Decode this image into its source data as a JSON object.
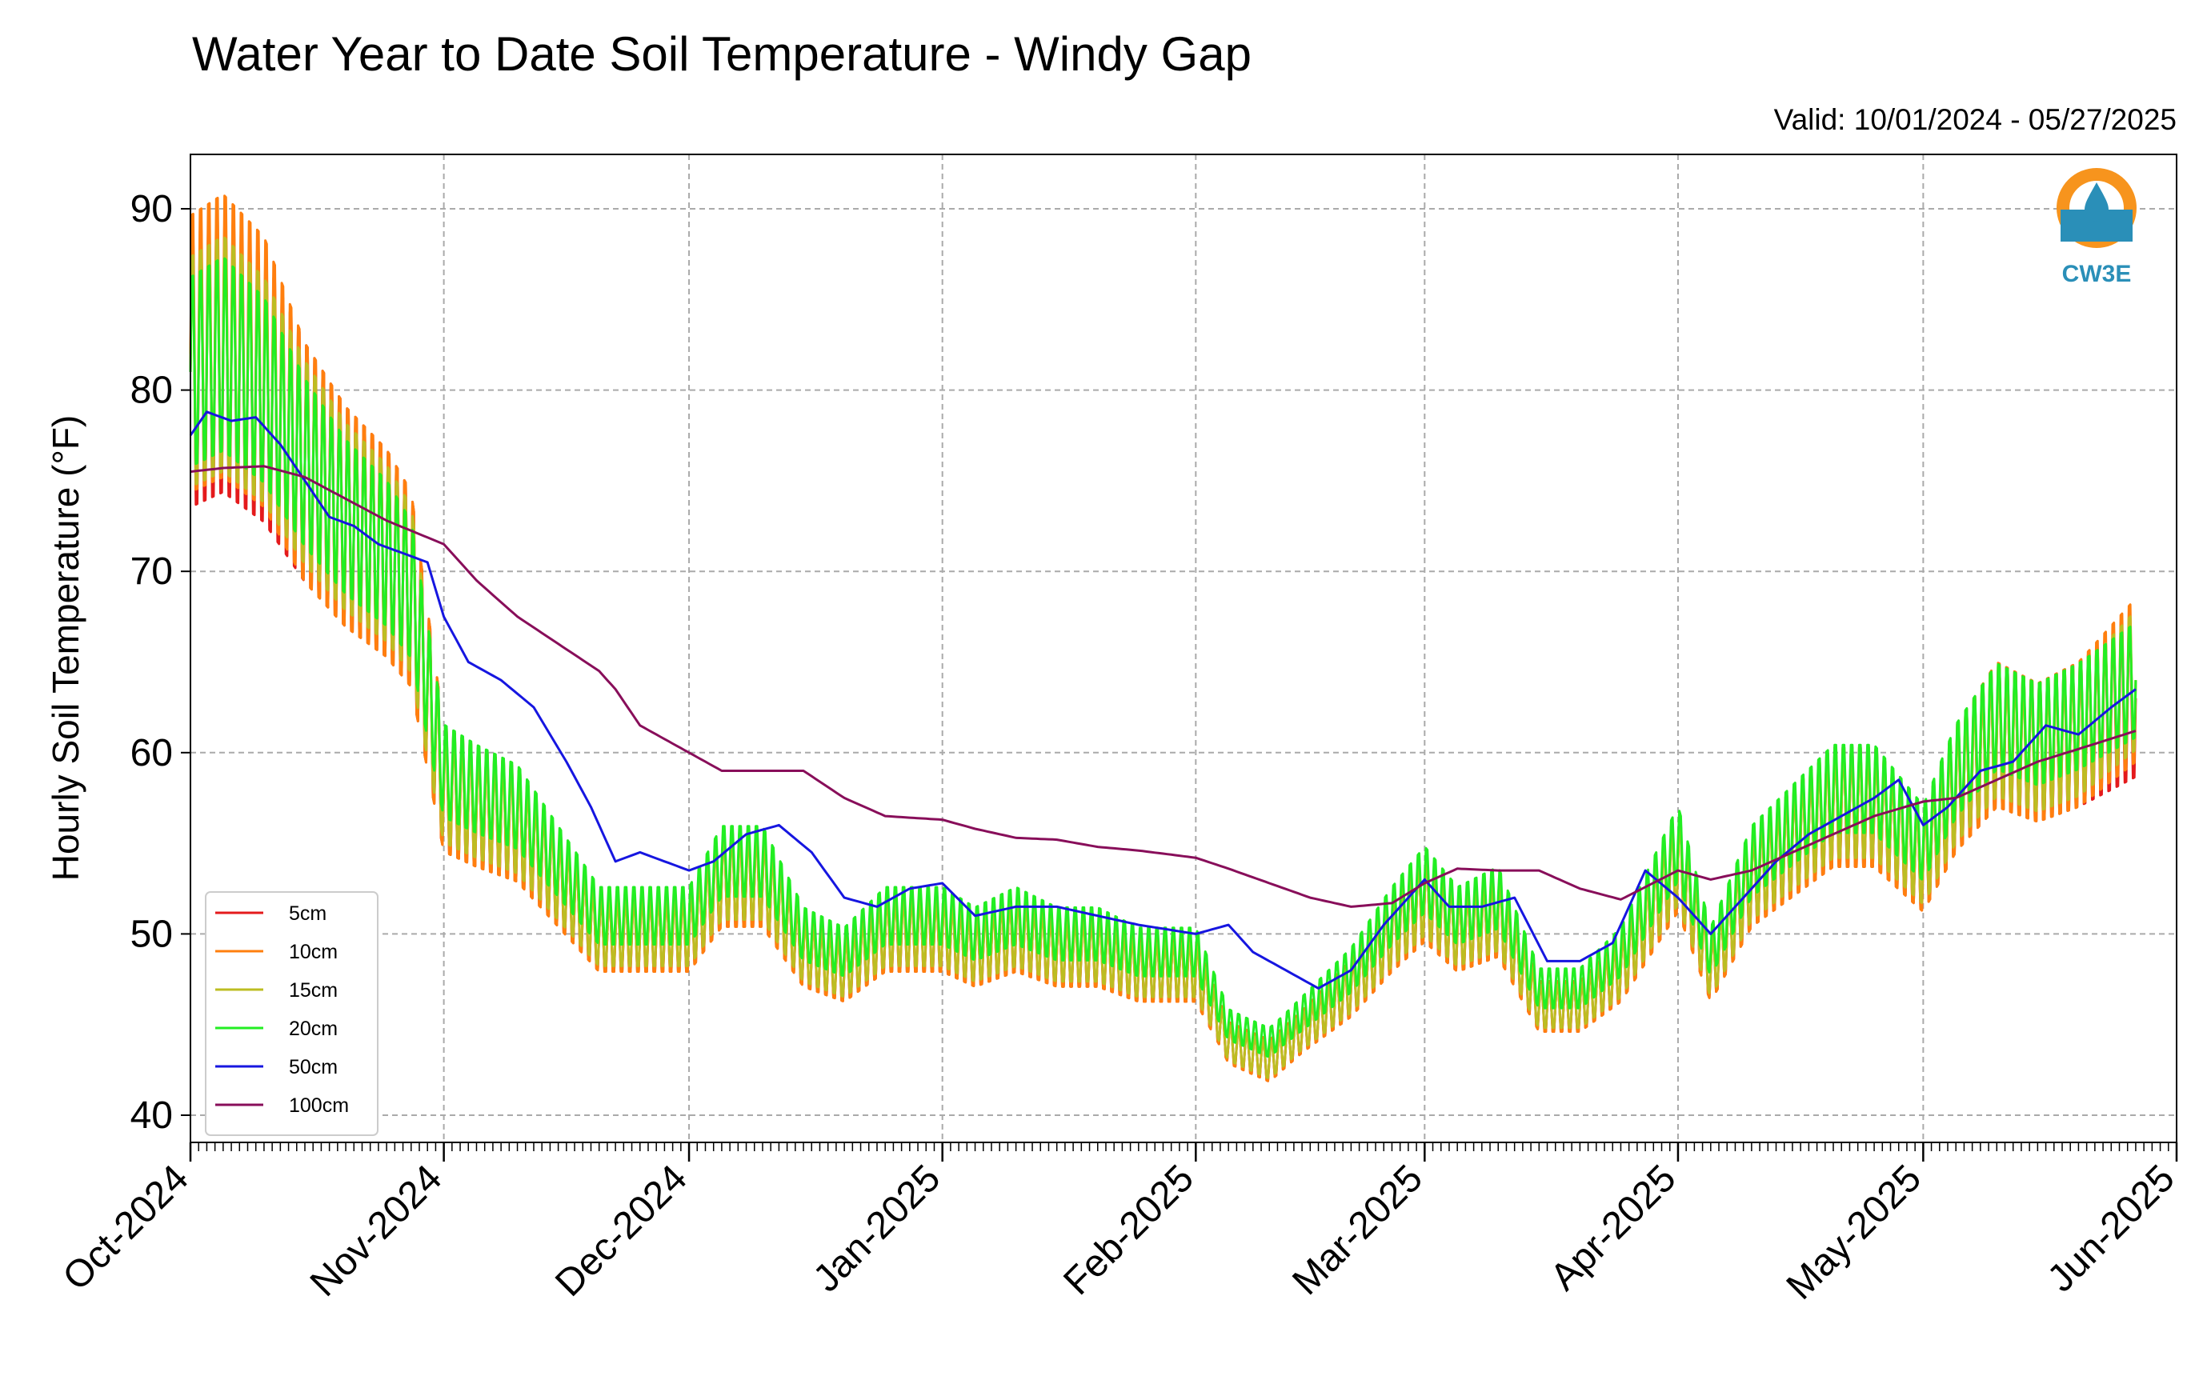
{
  "chart_data": {
    "type": "line",
    "title": "Water Year to Date Soil Temperature - Windy Gap",
    "valid_text": "Valid: 10/01/2024 - 05/27/2025",
    "ylabel": "Hourly Soil Temperature (°F)",
    "xlabel": "",
    "ylim": [
      38.5,
      93
    ],
    "xlim": [
      "2024-10-01",
      "2025-06-01"
    ],
    "y_ticks": [
      40,
      50,
      60,
      70,
      80,
      90
    ],
    "x_ticks": [
      {
        "date": "2024-10-01",
        "label": "Oct-2024"
      },
      {
        "date": "2024-11-01",
        "label": "Nov-2024"
      },
      {
        "date": "2024-12-01",
        "label": "Dec-2024"
      },
      {
        "date": "2025-01-01",
        "label": "Jan-2025"
      },
      {
        "date": "2025-02-01",
        "label": "Feb-2025"
      },
      {
        "date": "2025-03-01",
        "label": "Mar-2025"
      },
      {
        "date": "2025-04-01",
        "label": "Apr-2025"
      },
      {
        "date": "2025-05-01",
        "label": "May-2025"
      },
      {
        "date": "2025-06-01",
        "label": "Jun-2025"
      }
    ],
    "grid": true,
    "legend_position": "lower-left",
    "logo_text": "CW3E",
    "series": [
      {
        "name": "5cm",
        "color": "#e41a1c",
        "x": [
          "2024-10-01",
          "2024-10-05",
          "2024-10-10",
          "2024-10-15",
          "2024-10-20",
          "2024-10-25",
          "2024-10-28",
          "2024-11-01",
          "2024-11-05",
          "2024-11-10",
          "2024-11-15",
          "2024-11-20",
          "2024-11-25",
          "2024-12-01",
          "2024-12-05",
          "2024-12-10",
          "2024-12-15",
          "2024-12-20",
          "2024-12-25",
          "2025-01-01",
          "2025-01-05",
          "2025-01-10",
          "2025-01-15",
          "2025-01-20",
          "2025-01-25",
          "2025-02-01",
          "2025-02-05",
          "2025-02-10",
          "2025-02-15",
          "2025-02-20",
          "2025-02-25",
          "2025-03-01",
          "2025-03-05",
          "2025-03-10",
          "2025-03-15",
          "2025-03-20",
          "2025-03-25",
          "2025-04-01",
          "2025-04-05",
          "2025-04-10",
          "2025-04-15",
          "2025-04-20",
          "2025-04-25",
          "2025-05-01",
          "2025-05-05",
          "2025-05-10",
          "2025-05-15",
          "2025-05-20",
          "2025-05-27"
        ],
        "y": [
          81,
          82,
          80,
          76,
          73,
          71,
          69,
          58,
          57,
          56,
          53,
          50,
          50,
          50,
          53,
          53,
          49,
          48,
          50,
          50,
          49,
          50,
          49,
          49,
          48,
          48,
          44,
          43,
          45,
          47,
          50,
          52,
          50,
          51,
          46,
          46,
          48,
          54,
          48,
          53,
          55,
          57,
          57,
          54,
          58,
          61,
          60,
          61,
          63
        ]
      },
      {
        "name": "10cm",
        "color": "#ff7f0e",
        "x": [
          "2024-10-01",
          "2024-10-05",
          "2024-10-10",
          "2024-10-15",
          "2024-10-20",
          "2024-10-25",
          "2024-10-28",
          "2024-11-01",
          "2024-11-05",
          "2024-11-10",
          "2024-11-15",
          "2024-11-20",
          "2024-11-25",
          "2024-12-01",
          "2024-12-05",
          "2024-12-10",
          "2024-12-15",
          "2024-12-20",
          "2024-12-25",
          "2025-01-01",
          "2025-01-05",
          "2025-01-10",
          "2025-01-15",
          "2025-01-20",
          "2025-01-25",
          "2025-02-01",
          "2025-02-05",
          "2025-02-10",
          "2025-02-15",
          "2025-02-20",
          "2025-02-25",
          "2025-03-01",
          "2025-03-05",
          "2025-03-10",
          "2025-03-15",
          "2025-03-20",
          "2025-03-25",
          "2025-04-01",
          "2025-04-05",
          "2025-04-10",
          "2025-04-15",
          "2025-04-20",
          "2025-04-25",
          "2025-05-01",
          "2025-05-05",
          "2025-05-10",
          "2025-05-15",
          "2025-05-20",
          "2025-05-27"
        ],
        "y": [
          82,
          83,
          81,
          76,
          73,
          71,
          69,
          58,
          57,
          56,
          53,
          50,
          50,
          50,
          53,
          53,
          49,
          48,
          50,
          50,
          49,
          50,
          49,
          49,
          48,
          48,
          44,
          43,
          45,
          47,
          50,
          52,
          50,
          51,
          46,
          46,
          48,
          54,
          48,
          53,
          55,
          57,
          57,
          54,
          58,
          61,
          60,
          61,
          64
        ]
      },
      {
        "name": "15cm",
        "color": "#bcbd22",
        "x": [
          "2024-10-01",
          "2024-10-05",
          "2024-10-10",
          "2024-10-15",
          "2024-10-20",
          "2024-10-25",
          "2024-10-28",
          "2024-11-01",
          "2024-11-05",
          "2024-11-10",
          "2024-11-15",
          "2024-11-20",
          "2024-11-25",
          "2024-12-01",
          "2024-12-05",
          "2024-12-10",
          "2024-12-15",
          "2024-12-20",
          "2024-12-25",
          "2025-01-01",
          "2025-01-05",
          "2025-01-10",
          "2025-01-15",
          "2025-01-20",
          "2025-01-25",
          "2025-02-01",
          "2025-02-05",
          "2025-02-10",
          "2025-02-15",
          "2025-02-20",
          "2025-02-25",
          "2025-03-01",
          "2025-03-05",
          "2025-03-10",
          "2025-03-15",
          "2025-03-20",
          "2025-03-25",
          "2025-04-01",
          "2025-04-05",
          "2025-04-10",
          "2025-04-15",
          "2025-04-20",
          "2025-04-25",
          "2025-05-01",
          "2025-05-05",
          "2025-05-10",
          "2025-05-15",
          "2025-05-20",
          "2025-05-27"
        ],
        "y": [
          81,
          82,
          80,
          76,
          73,
          71,
          69,
          58,
          57,
          56,
          53,
          50,
          50,
          50,
          53,
          53,
          49,
          48,
          50,
          50,
          49,
          50,
          49,
          49,
          48,
          48,
          44,
          43,
          45,
          47,
          50,
          52,
          50,
          51,
          46,
          46,
          48,
          54,
          48,
          53,
          55,
          57,
          57,
          54,
          58,
          61,
          60,
          61,
          64
        ]
      },
      {
        "name": "20cm",
        "color": "#22ee22",
        "x": [
          "2024-10-01",
          "2024-10-05",
          "2024-10-10",
          "2024-10-15",
          "2024-10-20",
          "2024-10-25",
          "2024-10-28",
          "2024-11-01",
          "2024-11-05",
          "2024-11-10",
          "2024-11-15",
          "2024-11-20",
          "2024-11-25",
          "2024-12-01",
          "2024-12-05",
          "2024-12-10",
          "2024-12-15",
          "2024-12-20",
          "2024-12-25",
          "2025-01-01",
          "2025-01-05",
          "2025-01-10",
          "2025-01-15",
          "2025-01-20",
          "2025-01-25",
          "2025-02-01",
          "2025-02-05",
          "2025-02-10",
          "2025-02-15",
          "2025-02-20",
          "2025-02-25",
          "2025-03-01",
          "2025-03-05",
          "2025-03-10",
          "2025-03-15",
          "2025-03-20",
          "2025-03-25",
          "2025-04-01",
          "2025-04-05",
          "2025-04-10",
          "2025-04-15",
          "2025-04-20",
          "2025-04-25",
          "2025-05-01",
          "2025-05-05",
          "2025-05-10",
          "2025-05-15",
          "2025-05-20",
          "2025-05-27"
        ],
        "y": [
          81,
          82,
          80,
          76,
          73,
          71,
          69,
          59,
          58,
          57,
          54,
          51,
          51,
          51,
          54,
          54,
          50,
          49,
          51,
          51,
          50,
          51,
          50,
          50,
          49,
          49,
          45,
          44,
          46,
          48,
          51,
          53,
          51,
          52,
          47,
          47,
          49,
          55,
          49,
          54,
          56,
          58,
          58,
          55,
          59,
          62,
          61,
          62,
          64
        ]
      },
      {
        "name": "50cm",
        "color": "#1616e0",
        "x": [
          "2024-10-01",
          "2024-10-03",
          "2024-10-06",
          "2024-10-09",
          "2024-10-12",
          "2024-10-15",
          "2024-10-18",
          "2024-10-21",
          "2024-10-24",
          "2024-10-27",
          "2024-10-30",
          "2024-11-01",
          "2024-11-04",
          "2024-11-08",
          "2024-11-12",
          "2024-11-16",
          "2024-11-19",
          "2024-11-22",
          "2024-11-25",
          "2024-11-28",
          "2024-12-01",
          "2024-12-04",
          "2024-12-08",
          "2024-12-12",
          "2024-12-16",
          "2024-12-20",
          "2024-12-24",
          "2024-12-28",
          "2025-01-01",
          "2025-01-05",
          "2025-01-10",
          "2025-01-15",
          "2025-01-20",
          "2025-01-25",
          "2025-02-01",
          "2025-02-05",
          "2025-02-08",
          "2025-02-12",
          "2025-02-16",
          "2025-02-20",
          "2025-02-24",
          "2025-03-01",
          "2025-03-04",
          "2025-03-08",
          "2025-03-12",
          "2025-03-16",
          "2025-03-20",
          "2025-03-24",
          "2025-03-28",
          "2025-04-01",
          "2025-04-05",
          "2025-04-09",
          "2025-04-13",
          "2025-04-17",
          "2025-04-21",
          "2025-04-25",
          "2025-04-28",
          "2025-05-01",
          "2025-05-04",
          "2025-05-08",
          "2025-05-12",
          "2025-05-16",
          "2025-05-20",
          "2025-05-24",
          "2025-05-27"
        ],
        "y": [
          77.5,
          78.8,
          78.3,
          78.5,
          77,
          75,
          73,
          72.5,
          71.5,
          71,
          70.5,
          67.5,
          65,
          64,
          62.5,
          59.5,
          57,
          54,
          54.5,
          54,
          53.5,
          54,
          55.5,
          56,
          54.5,
          52,
          51.5,
          52.5,
          52.8,
          51,
          51.5,
          51.5,
          51,
          50.5,
          50,
          50.5,
          49,
          48,
          47,
          48,
          50.5,
          53,
          51.5,
          51.5,
          52,
          48.5,
          48.5,
          49.5,
          53.5,
          52,
          50,
          52,
          54,
          55.5,
          56.5,
          57.5,
          58.5,
          56,
          57,
          59,
          59.5,
          61.5,
          61,
          62.5,
          63.5
        ]
      },
      {
        "name": "100cm",
        "color": "#880e5a",
        "x": [
          "2024-10-01",
          "2024-10-05",
          "2024-10-10",
          "2024-10-15",
          "2024-10-20",
          "2024-10-25",
          "2024-11-01",
          "2024-11-05",
          "2024-11-10",
          "2024-11-15",
          "2024-11-20",
          "2024-11-22",
          "2024-11-25",
          "2024-12-01",
          "2024-12-05",
          "2024-12-10",
          "2024-12-15",
          "2024-12-20",
          "2024-12-25",
          "2025-01-01",
          "2025-01-05",
          "2025-01-10",
          "2025-01-15",
          "2025-01-20",
          "2025-01-25",
          "2025-02-01",
          "2025-02-05",
          "2025-02-10",
          "2025-02-15",
          "2025-02-20",
          "2025-02-25",
          "2025-03-01",
          "2025-03-05",
          "2025-03-10",
          "2025-03-15",
          "2025-03-20",
          "2025-03-25",
          "2025-04-01",
          "2025-04-05",
          "2025-04-10",
          "2025-04-15",
          "2025-04-20",
          "2025-04-25",
          "2025-05-01",
          "2025-05-05",
          "2025-05-10",
          "2025-05-15",
          "2025-05-20",
          "2025-05-27"
        ],
        "y": [
          75.5,
          75.7,
          75.8,
          75.2,
          74,
          72.8,
          71.5,
          69.5,
          67.5,
          66,
          64.5,
          63.5,
          61.5,
          60,
          59,
          59,
          59,
          57.5,
          56.5,
          56.3,
          55.8,
          55.3,
          55.2,
          54.8,
          54.6,
          54.2,
          53.6,
          52.8,
          52,
          51.5,
          51.7,
          52.8,
          53.6,
          53.5,
          53.5,
          52.5,
          51.9,
          53.5,
          53,
          53.5,
          54.5,
          55.5,
          56.5,
          57.3,
          57.5,
          58.5,
          59.5,
          60.2,
          61.2
        ]
      }
    ]
  }
}
